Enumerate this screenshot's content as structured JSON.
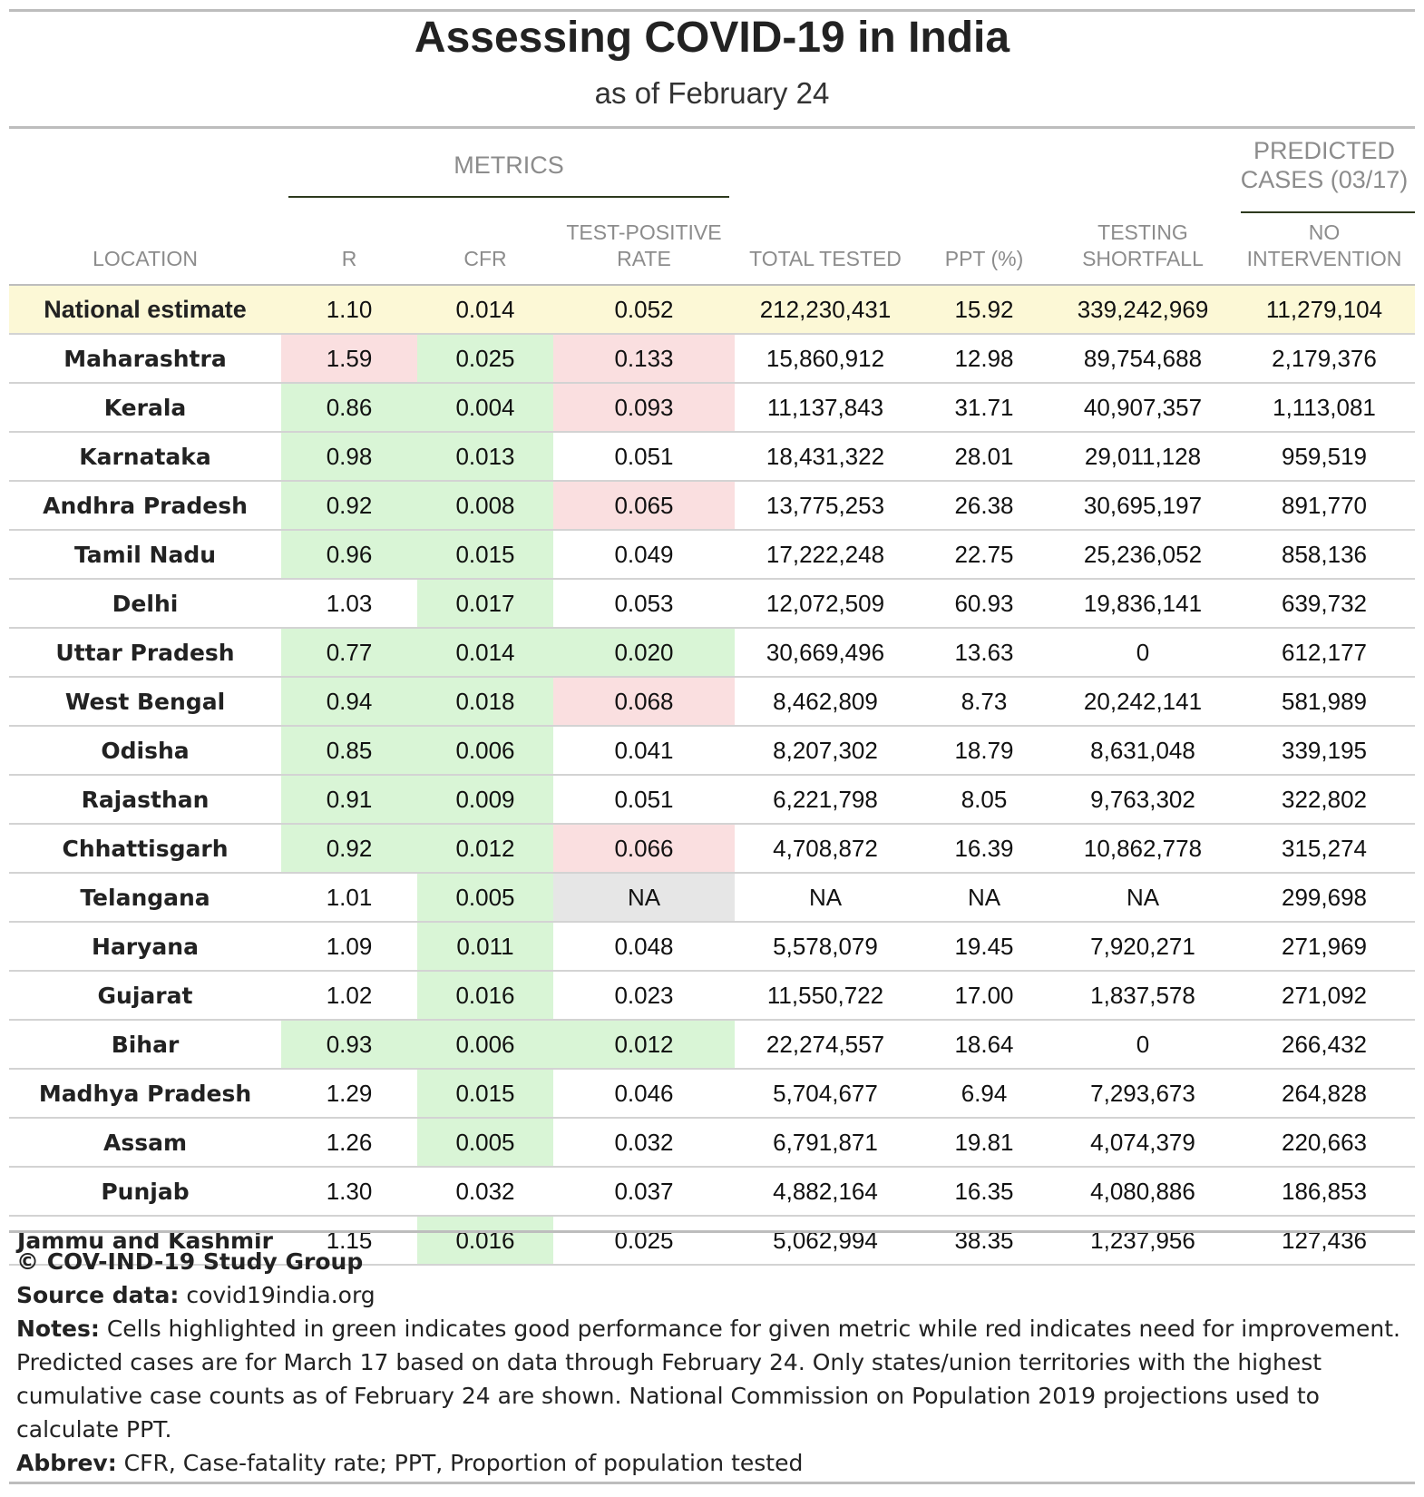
{
  "header": {
    "title": "Assessing COVID-19 in India",
    "subtitle": "as of February 24"
  },
  "spanners": {
    "metrics": "METRICS",
    "predicted": "PREDICTED CASES (03/17)"
  },
  "columns": {
    "location": "LOCATION",
    "r": "R",
    "cfr": "CFR",
    "tpr": "TEST-POSITIVE RATE",
    "total_tested": "TOTAL TESTED",
    "ppt": "PPT (%)",
    "shortfall": "TESTING SHORTFALL",
    "no_intervention": "NO INTERVENTION"
  },
  "colors": {
    "good": "#d9f5d6",
    "bad": "#fadfe0",
    "na": "#e6e6e6",
    "national": "#fcf8d6"
  },
  "rows": [
    {
      "location": "National estimate",
      "r": "1.10",
      "cfr": "0.014",
      "tpr": "0.052",
      "total_tested": "212,230,431",
      "ppt": "15.92",
      "shortfall": "339,242,969",
      "no_intervention": "11,279,104",
      "r_status": "",
      "cfr_status": "",
      "tpr_status": ""
    },
    {
      "location": "Maharashtra",
      "r": "1.59",
      "cfr": "0.025",
      "tpr": "0.133",
      "total_tested": "15,860,912",
      "ppt": "12.98",
      "shortfall": "89,754,688",
      "no_intervention": "2,179,376",
      "r_status": "bad",
      "cfr_status": "good",
      "tpr_status": "bad"
    },
    {
      "location": "Kerala",
      "r": "0.86",
      "cfr": "0.004",
      "tpr": "0.093",
      "total_tested": "11,137,843",
      "ppt": "31.71",
      "shortfall": "40,907,357",
      "no_intervention": "1,113,081",
      "r_status": "good",
      "cfr_status": "good",
      "tpr_status": "bad"
    },
    {
      "location": "Karnataka",
      "r": "0.98",
      "cfr": "0.013",
      "tpr": "0.051",
      "total_tested": "18,431,322",
      "ppt": "28.01",
      "shortfall": "29,011,128",
      "no_intervention": "959,519",
      "r_status": "good",
      "cfr_status": "good",
      "tpr_status": ""
    },
    {
      "location": "Andhra Pradesh",
      "r": "0.92",
      "cfr": "0.008",
      "tpr": "0.065",
      "total_tested": "13,775,253",
      "ppt": "26.38",
      "shortfall": "30,695,197",
      "no_intervention": "891,770",
      "r_status": "good",
      "cfr_status": "good",
      "tpr_status": "bad"
    },
    {
      "location": "Tamil Nadu",
      "r": "0.96",
      "cfr": "0.015",
      "tpr": "0.049",
      "total_tested": "17,222,248",
      "ppt": "22.75",
      "shortfall": "25,236,052",
      "no_intervention": "858,136",
      "r_status": "good",
      "cfr_status": "good",
      "tpr_status": ""
    },
    {
      "location": "Delhi",
      "r": "1.03",
      "cfr": "0.017",
      "tpr": "0.053",
      "total_tested": "12,072,509",
      "ppt": "60.93",
      "shortfall": "19,836,141",
      "no_intervention": "639,732",
      "r_status": "",
      "cfr_status": "good",
      "tpr_status": ""
    },
    {
      "location": "Uttar Pradesh",
      "r": "0.77",
      "cfr": "0.014",
      "tpr": "0.020",
      "total_tested": "30,669,496",
      "ppt": "13.63",
      "shortfall": "0",
      "no_intervention": "612,177",
      "r_status": "good",
      "cfr_status": "good",
      "tpr_status": "good"
    },
    {
      "location": "West Bengal",
      "r": "0.94",
      "cfr": "0.018",
      "tpr": "0.068",
      "total_tested": "8,462,809",
      "ppt": "8.73",
      "shortfall": "20,242,141",
      "no_intervention": "581,989",
      "r_status": "good",
      "cfr_status": "good",
      "tpr_status": "bad"
    },
    {
      "location": "Odisha",
      "r": "0.85",
      "cfr": "0.006",
      "tpr": "0.041",
      "total_tested": "8,207,302",
      "ppt": "18.79",
      "shortfall": "8,631,048",
      "no_intervention": "339,195",
      "r_status": "good",
      "cfr_status": "good",
      "tpr_status": ""
    },
    {
      "location": "Rajasthan",
      "r": "0.91",
      "cfr": "0.009",
      "tpr": "0.051",
      "total_tested": "6,221,798",
      "ppt": "8.05",
      "shortfall": "9,763,302",
      "no_intervention": "322,802",
      "r_status": "good",
      "cfr_status": "good",
      "tpr_status": ""
    },
    {
      "location": "Chhattisgarh",
      "r": "0.92",
      "cfr": "0.012",
      "tpr": "0.066",
      "total_tested": "4,708,872",
      "ppt": "16.39",
      "shortfall": "10,862,778",
      "no_intervention": "315,274",
      "r_status": "good",
      "cfr_status": "good",
      "tpr_status": "bad"
    },
    {
      "location": "Telangana",
      "r": "1.01",
      "cfr": "0.005",
      "tpr": "NA",
      "total_tested": "NA",
      "ppt": "NA",
      "shortfall": "NA",
      "no_intervention": "299,698",
      "r_status": "",
      "cfr_status": "good",
      "tpr_status": "na"
    },
    {
      "location": "Haryana",
      "r": "1.09",
      "cfr": "0.011",
      "tpr": "0.048",
      "total_tested": "5,578,079",
      "ppt": "19.45",
      "shortfall": "7,920,271",
      "no_intervention": "271,969",
      "r_status": "",
      "cfr_status": "good",
      "tpr_status": ""
    },
    {
      "location": "Gujarat",
      "r": "1.02",
      "cfr": "0.016",
      "tpr": "0.023",
      "total_tested": "11,550,722",
      "ppt": "17.00",
      "shortfall": "1,837,578",
      "no_intervention": "271,092",
      "r_status": "",
      "cfr_status": "good",
      "tpr_status": ""
    },
    {
      "location": "Bihar",
      "r": "0.93",
      "cfr": "0.006",
      "tpr": "0.012",
      "total_tested": "22,274,557",
      "ppt": "18.64",
      "shortfall": "0",
      "no_intervention": "266,432",
      "r_status": "good",
      "cfr_status": "good",
      "tpr_status": "good"
    },
    {
      "location": "Madhya Pradesh",
      "r": "1.29",
      "cfr": "0.015",
      "tpr": "0.046",
      "total_tested": "5,704,677",
      "ppt": "6.94",
      "shortfall": "7,293,673",
      "no_intervention": "264,828",
      "r_status": "",
      "cfr_status": "good",
      "tpr_status": ""
    },
    {
      "location": "Assam",
      "r": "1.26",
      "cfr": "0.005",
      "tpr": "0.032",
      "total_tested": "6,791,871",
      "ppt": "19.81",
      "shortfall": "4,074,379",
      "no_intervention": "220,663",
      "r_status": "",
      "cfr_status": "good",
      "tpr_status": ""
    },
    {
      "location": "Punjab",
      "r": "1.30",
      "cfr": "0.032",
      "tpr": "0.037",
      "total_tested": "4,882,164",
      "ppt": "16.35",
      "shortfall": "4,080,886",
      "no_intervention": "186,853",
      "r_status": "",
      "cfr_status": "",
      "tpr_status": ""
    },
    {
      "location": "Jammu and Kashmir",
      "r": "1.15",
      "cfr": "0.016",
      "tpr": "0.025",
      "total_tested": "5,062,994",
      "ppt": "38.35",
      "shortfall": "1,237,956",
      "no_intervention": "127,436",
      "r_status": "",
      "cfr_status": "good",
      "tpr_status": ""
    }
  ],
  "footer": {
    "copyright": "© COV-IND-19 Study Group",
    "source_label": "Source data:",
    "source_value": "covid19india.org",
    "notes_label": "Notes:",
    "notes_text": "Cells highlighted in green indicates good performance for given metric while red indicates need for improvement. Predicted cases are for March 17 based on data through February 24. Only states/union territories with the highest cumulative case counts as of February 24 are shown. National Commission on Population 2019 projections used to calculate PPT.",
    "abbrev_label": "Abbrev:",
    "abbrev_text": "CFR, Case-fatality rate; PPT, Proportion of population tested"
  }
}
